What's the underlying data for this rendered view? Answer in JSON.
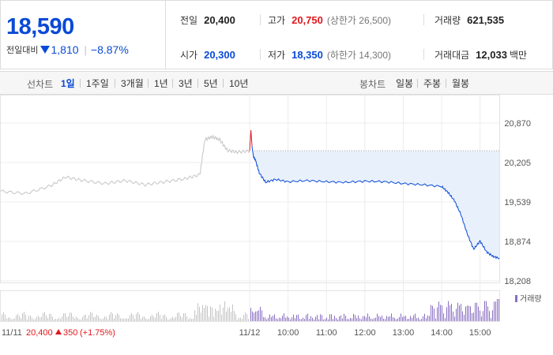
{
  "summary": {
    "current_price": "18,590",
    "change_label": "전일대비",
    "change_direction": "down",
    "change_amount": "1,810",
    "change_percent": "−8.87%",
    "prev_close": {
      "label": "전일",
      "value": "20,400"
    },
    "open": {
      "label": "시가",
      "value": "20,300"
    },
    "high": {
      "label": "고가",
      "value": "20,750",
      "limit": "(상한가 26,500)"
    },
    "low": {
      "label": "저가",
      "value": "18,350",
      "limit": "(하한가 14,300)"
    },
    "volume": {
      "label": "거래량",
      "value": "621,535"
    },
    "trade_value": {
      "label": "거래대금",
      "value": "12,033",
      "unit": "백만"
    }
  },
  "period_bar": {
    "line_title": "선차트",
    "line_periods": [
      "1일",
      "1주일",
      "3개월",
      "1년",
      "3년",
      "5년",
      "10년"
    ],
    "active_period": "1일",
    "candle_title": "봉차트",
    "candle_periods": [
      "일봉",
      "주봉",
      "월봉"
    ]
  },
  "colors": {
    "rise": "#e0181e",
    "fall": "#0a4ad6",
    "prev_day_line": "#c4c4c4",
    "volume_bar": "#8a6fc2",
    "area_fill": "#e8f0fb"
  },
  "chart_data": {
    "type": "line",
    "y_ticks": [
      "20,870",
      "20,205",
      "19,539",
      "18,874",
      "18,208"
    ],
    "y_range": [
      18208,
      20870
    ],
    "x_ticks": [
      "11/12",
      "10:00",
      "11:00",
      "12:00",
      "13:00",
      "14:00",
      "15:00"
    ],
    "reference_price": 20400,
    "prev_day": {
      "date": "11/11",
      "close": "20,400",
      "change": "350",
      "change_percent": "(+1.75%)",
      "x": [
        0,
        0.1,
        0.2,
        0.26,
        0.33,
        0.42,
        0.5,
        0.58,
        0.66,
        0.74,
        0.8,
        0.82,
        0.85,
        0.88,
        0.91,
        0.95,
        1.0
      ],
      "y": [
        19720,
        19680,
        19810,
        19960,
        19900,
        19850,
        19900,
        19830,
        19880,
        19930,
        20000,
        20590,
        20640,
        20590,
        20410,
        20380,
        20400
      ]
    },
    "today": {
      "date": "11/12",
      "x_time": [
        "09:00",
        "09:02",
        "09:04",
        "09:06",
        "09:09",
        "09:15",
        "09:25",
        "09:40",
        "10:00",
        "10:30",
        "11:00",
        "11:30",
        "12:00",
        "12:30",
        "13:00",
        "13:30",
        "14:00",
        "14:10",
        "14:20",
        "14:30",
        "14:40",
        "14:50",
        "15:00",
        "15:10",
        "15:20",
        "15:30"
      ],
      "y": [
        20400,
        20750,
        20450,
        20300,
        20250,
        20030,
        19870,
        19920,
        19880,
        19900,
        19880,
        19870,
        19890,
        19880,
        19850,
        19830,
        19800,
        19700,
        19560,
        19330,
        19000,
        18740,
        18880,
        18700,
        18620,
        18590
      ]
    },
    "volume_legend": "거래량"
  }
}
